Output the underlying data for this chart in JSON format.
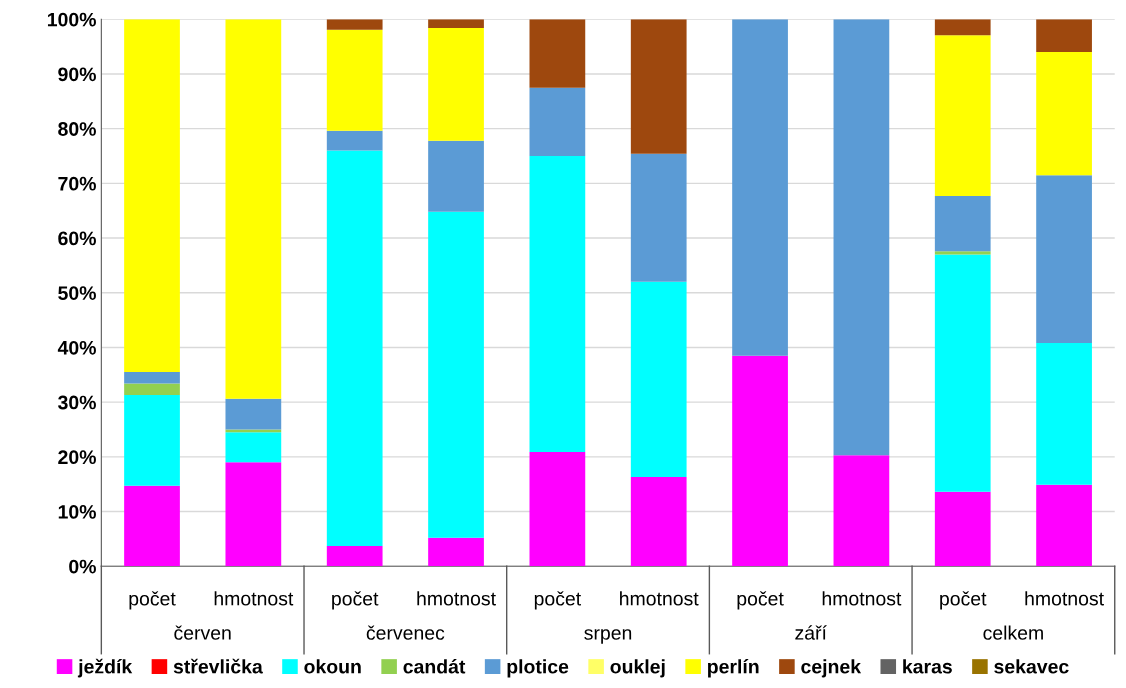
{
  "chart_data": {
    "type": "bar",
    "stacked": true,
    "categories": [
      "počet",
      "hmotnost",
      "počet",
      "hmotnost",
      "počet",
      "hmotnost",
      "počet",
      "hmotnost",
      "počet",
      "hmotnost"
    ],
    "annotations": [
      "červen",
      "červenec",
      "srpen",
      "září",
      "celkem"
    ],
    "series": [
      {
        "name": "ježdík",
        "color": "#ff00ff",
        "values": [
          14.7,
          19,
          3.7,
          5.2,
          20.9,
          16.3,
          38.5,
          20.3,
          13.6,
          14.9
        ]
      },
      {
        "name": "střevlička",
        "color": "#ff0000",
        "values": [
          0,
          0,
          0,
          0,
          0,
          0,
          0,
          0,
          0,
          0
        ]
      },
      {
        "name": "okoun",
        "color": "#00ffff",
        "values": [
          16.6,
          5.5,
          72.3,
          59.6,
          54.1,
          35.7,
          0,
          0,
          43.4,
          25.9
        ]
      },
      {
        "name": "candát",
        "color": "#92d050",
        "values": [
          2.1,
          0.5,
          0,
          0,
          0,
          0,
          0,
          0,
          0.6,
          0
        ]
      },
      {
        "name": "plotice",
        "color": "#5b9bd5",
        "values": [
          2.1,
          5.6,
          3.6,
          13,
          12.5,
          23.4,
          61.5,
          79.7,
          10.1,
          30.7
        ]
      },
      {
        "name": "ouklej",
        "color": "#ffff66",
        "values": [
          0,
          0,
          0,
          0,
          0,
          0,
          0,
          0,
          0,
          0
        ]
      },
      {
        "name": "perlín",
        "color": "#ffff00",
        "values": [
          64.5,
          69.4,
          18.5,
          20.6,
          0,
          0,
          0,
          0,
          29.4,
          22.5
        ]
      },
      {
        "name": "cejnek",
        "color": "#9e480e",
        "values": [
          0,
          0,
          1.9,
          1.6,
          12.5,
          24.6,
          0,
          0,
          2.9,
          6
        ]
      },
      {
        "name": "karas",
        "color": "#636363",
        "values": [
          0,
          0,
          0,
          0,
          0,
          0,
          0,
          0,
          0,
          0
        ]
      },
      {
        "name": "sekavec",
        "color": "#997300",
        "values": [
          0,
          0,
          0,
          0,
          0,
          0,
          0,
          0,
          0,
          0
        ]
      }
    ],
    "ylim": [
      0,
      100
    ],
    "yticks": [
      {
        "value": 0,
        "label": "0%"
      },
      {
        "value": 10,
        "label": "10%"
      },
      {
        "value": 20,
        "label": "20%"
      },
      {
        "value": 30,
        "label": "30%"
      },
      {
        "value": 40,
        "label": "40%"
      },
      {
        "value": 50,
        "label": "50%"
      },
      {
        "value": 60,
        "label": "60%"
      },
      {
        "value": 70,
        "label": "70%"
      },
      {
        "value": 80,
        "label": "80%"
      },
      {
        "value": 90,
        "label": "90%"
      },
      {
        "value": 100,
        "label": "100%"
      }
    ],
    "grid": "y",
    "legend": "bottom"
  }
}
